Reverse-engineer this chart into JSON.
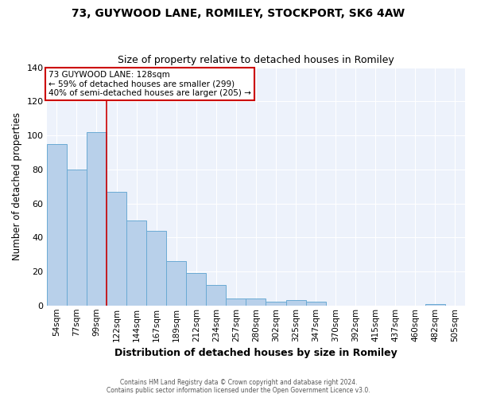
{
  "title": "73, GUYWOOD LANE, ROMILEY, STOCKPORT, SK6 4AW",
  "subtitle": "Size of property relative to detached houses in Romiley",
  "xlabel": "Distribution of detached houses by size in Romiley",
  "ylabel": "Number of detached properties",
  "bar_labels": [
    "54sqm",
    "77sqm",
    "99sqm",
    "122sqm",
    "144sqm",
    "167sqm",
    "189sqm",
    "212sqm",
    "234sqm",
    "257sqm",
    "280sqm",
    "302sqm",
    "325sqm",
    "347sqm",
    "370sqm",
    "392sqm",
    "415sqm",
    "437sqm",
    "460sqm",
    "482sqm",
    "505sqm"
  ],
  "bar_values": [
    95,
    80,
    102,
    67,
    50,
    44,
    26,
    19,
    12,
    4,
    4,
    2,
    3,
    2,
    0,
    0,
    0,
    0,
    0,
    1,
    0
  ],
  "bar_color": "#b8d0ea",
  "bar_edgecolor": "#6aaad4",
  "fig_facecolor": "#ffffff",
  "ax_facecolor": "#edf2fb",
  "grid_color": "#ffffff",
  "ylim": [
    0,
    140
  ],
  "yticks": [
    0,
    20,
    40,
    60,
    80,
    100,
    120,
    140
  ],
  "vline_index": 3,
  "vline_color": "#cc0000",
  "annotation_text_line1": "73 GUYWOOD LANE: 128sqm",
  "annotation_text_line2": "← 59% of detached houses are smaller (299)",
  "annotation_text_line3": "40% of semi-detached houses are larger (205) →",
  "annotation_box_edgecolor": "#cc0000",
  "footer_line1": "Contains HM Land Registry data © Crown copyright and database right 2024.",
  "footer_line2": "Contains public sector information licensed under the Open Government Licence v3.0."
}
